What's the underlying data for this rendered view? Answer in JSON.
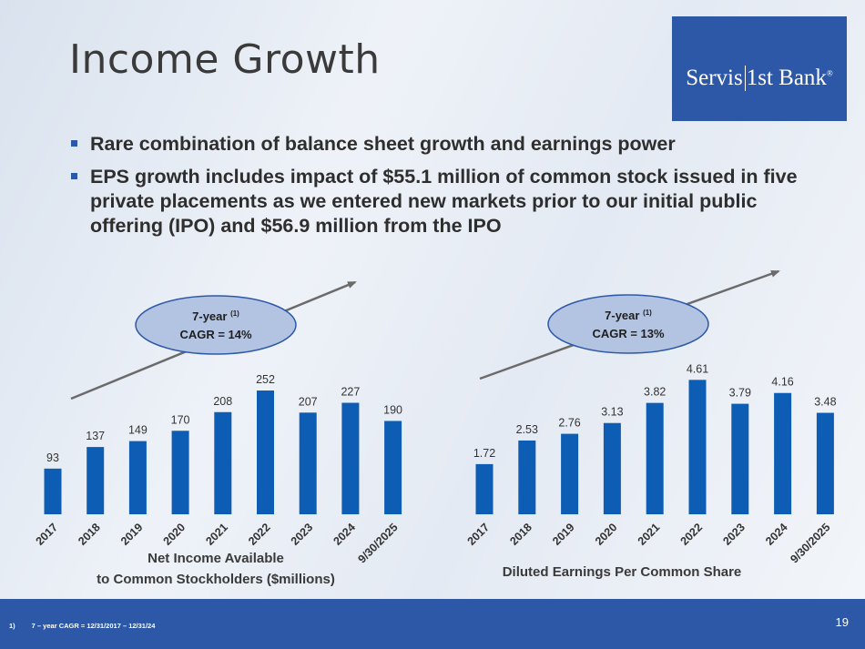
{
  "title": "Income Growth",
  "logo": {
    "part1": "Servis",
    "part2": "1st Bank",
    "mark": "®"
  },
  "bullets": [
    "Rare combination of balance sheet growth and earnings power",
    "EPS growth includes impact of $55.1 million of common stock issued in five private placements as we entered new markets prior to our initial public offering (IPO) and $56.9 million from the IPO"
  ],
  "chart_data": [
    {
      "type": "bar",
      "categories": [
        "2017",
        "2018",
        "2019",
        "2020",
        "2021",
        "2022",
        "2023",
        "2024",
        "9/30/2025"
      ],
      "values": [
        93,
        137,
        149,
        170,
        208,
        252,
        207,
        227,
        190
      ],
      "value_labels": [
        "93",
        "137",
        "149",
        "170",
        "208",
        "252",
        "207",
        "227",
        "190"
      ],
      "xlabel": [
        "Net Income Available",
        "to Common Stockholders ($millions)"
      ],
      "ylim": [
        0,
        265
      ],
      "color": "#0e5db5",
      "annotation": {
        "line1": "7-year",
        "sup": "(1)",
        "line2": "CAGR = 14%"
      }
    },
    {
      "type": "bar",
      "categories": [
        "2017",
        "2018",
        "2019",
        "2020",
        "2021",
        "2022",
        "2023",
        "2024",
        "9/30/2025"
      ],
      "values": [
        1.72,
        2.53,
        2.76,
        3.13,
        3.82,
        4.61,
        3.79,
        4.16,
        3.48
      ],
      "value_labels": [
        "1.72",
        "2.53",
        "2.76",
        "3.13",
        "3.82",
        "4.61",
        "3.79",
        "4.16",
        "3.48"
      ],
      "xlabel": [
        "Diluted Earnings Per Common Share"
      ],
      "ylim": [
        0,
        4.87
      ],
      "color": "#0e5db5",
      "annotation": {
        "line1": "7-year",
        "sup": "(1)",
        "line2": "CAGR = 13%"
      }
    }
  ],
  "footer": {
    "note_num": "1)",
    "note_text": "7 – year CAGR = 12/31/2017 – 12/31/24",
    "page": "19"
  },
  "colors": {
    "brand": "#2d58a7",
    "bar": "#0e5db5",
    "ellipse": "#b3c4e3",
    "arrow": "#6b6b6b"
  }
}
